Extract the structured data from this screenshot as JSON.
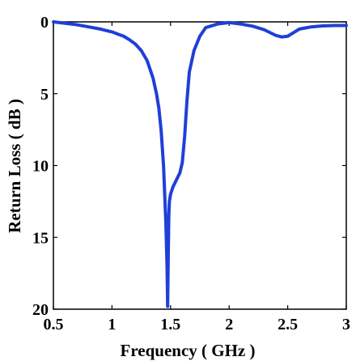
{
  "chart_data": {
    "type": "line",
    "title": "",
    "xlabel": "Frequency ( GHz )",
    "ylabel": "Return Loss ( dB )",
    "xlim": [
      0.5,
      3
    ],
    "ylim": [
      0,
      20
    ],
    "y_inverted": true,
    "grid": false,
    "x_ticks": [
      "0.5",
      "1",
      "1.5",
      "2",
      "2.5",
      "3"
    ],
    "y_ticks": [
      "0",
      "5",
      "10",
      "15",
      "20"
    ],
    "line_color": "#1f3fd8",
    "series": [
      {
        "x": [
          0.5,
          0.6,
          0.7,
          0.8,
          0.9,
          1.0,
          1.05,
          1.1,
          1.15,
          1.2,
          1.25,
          1.3,
          1.35,
          1.38,
          1.4,
          1.42,
          1.44,
          1.45,
          1.46,
          1.47,
          1.475,
          1.48,
          1.485,
          1.49,
          1.5,
          1.52,
          1.55,
          1.58,
          1.6,
          1.62,
          1.64,
          1.66,
          1.7,
          1.75,
          1.8,
          1.9,
          2.0,
          2.1,
          2.2,
          2.3,
          2.4,
          2.45,
          2.5,
          2.55,
          2.6,
          2.7,
          2.8,
          2.9,
          3.0
        ],
        "y": [
          0.0,
          0.1,
          0.2,
          0.35,
          0.5,
          0.7,
          0.85,
          1.0,
          1.25,
          1.55,
          2.0,
          2.7,
          3.9,
          5.0,
          6.0,
          7.6,
          10.0,
          12.0,
          14.0,
          17.0,
          19.8,
          16.5,
          13.5,
          12.5,
          12.0,
          11.5,
          11.0,
          10.5,
          9.8,
          8.0,
          5.5,
          3.5,
          2.0,
          1.0,
          0.4,
          0.15,
          0.05,
          0.15,
          0.3,
          0.55,
          0.95,
          1.05,
          1.0,
          0.75,
          0.5,
          0.35,
          0.28,
          0.25,
          0.25
        ]
      }
    ]
  }
}
